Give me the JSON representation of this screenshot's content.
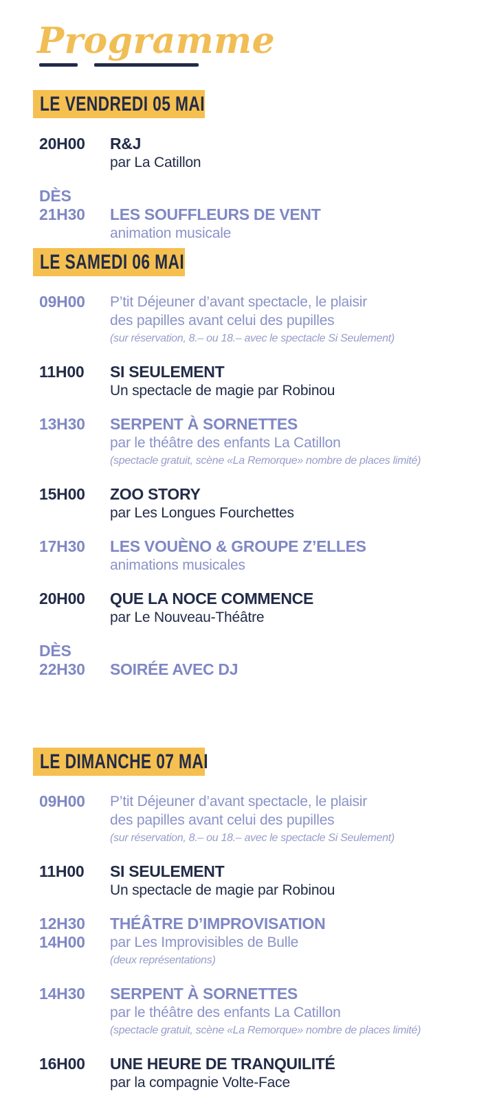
{
  "title": "Programme",
  "palette": {
    "navy": "#222B48",
    "accent": "#7F88C4",
    "accent_soft": "#8A92C8",
    "accent_note": "#979DCB",
    "yellow": "#F5C050",
    "gold": "#F1BD55"
  },
  "sections": [
    {
      "label": "LE VENDREDI 05 MAI",
      "events": [
        {
          "time_lines": [
            "20H00"
          ],
          "align": "first",
          "tone": "dark",
          "lines": [
            {
              "kind": "title",
              "text": "R&J"
            },
            {
              "kind": "sub",
              "text": "par La Catillon"
            }
          ]
        },
        {
          "time_lines": [
            "DÈS",
            "21H30"
          ],
          "align": "second",
          "tone": "accent",
          "lines": [
            {
              "kind": "title",
              "text": "LES SOUFFLEURS DE VENT"
            },
            {
              "kind": "sub",
              "text": "animation musicale"
            }
          ]
        }
      ]
    },
    {
      "label": "LE SAMEDI 06 MAI",
      "events": [
        {
          "time_lines": [
            "09H00"
          ],
          "align": "first",
          "tone": "accent",
          "lines": [
            {
              "kind": "plain",
              "text": "P’tit Déjeuner d’avant spectacle, le plaisir"
            },
            {
              "kind": "plain",
              "text": "des papilles avant celui des pupilles"
            },
            {
              "kind": "note",
              "text": "(sur réservation, 8.– ou 18.– avec le spectacle Si Seulement)"
            }
          ]
        },
        {
          "time_lines": [
            "11H00"
          ],
          "align": "first",
          "tone": "dark",
          "lines": [
            {
              "kind": "title",
              "text": "SI SEULEMENT"
            },
            {
              "kind": "sub",
              "text": "Un spectacle de magie par Robinou"
            }
          ]
        },
        {
          "time_lines": [
            "13H30"
          ],
          "align": "first",
          "tone": "accent",
          "lines": [
            {
              "kind": "title",
              "text": "SERPENT À SORNETTES"
            },
            {
              "kind": "sub",
              "text": "par le théâtre des enfants La Catillon"
            },
            {
              "kind": "note",
              "text": "(spectacle gratuit, scène «La Remorque» nombre de places limité)"
            }
          ]
        },
        {
          "time_lines": [
            "15H00"
          ],
          "align": "first",
          "tone": "dark",
          "lines": [
            {
              "kind": "title",
              "text": "ZOO STORY"
            },
            {
              "kind": "sub",
              "text": "par Les Longues Fourchettes"
            }
          ]
        },
        {
          "time_lines": [
            "17H30"
          ],
          "align": "first",
          "tone": "accent",
          "lines": [
            {
              "kind": "title",
              "text": "LES VOUÈNO & GROUPE Z’ELLES"
            },
            {
              "kind": "sub",
              "text": "animations musicales"
            }
          ]
        },
        {
          "time_lines": [
            "20H00"
          ],
          "align": "first",
          "tone": "dark",
          "lines": [
            {
              "kind": "title",
              "text": "QUE LA NOCE COMMENCE"
            },
            {
              "kind": "sub",
              "text": "par Le Nouveau-Théâtre"
            }
          ]
        },
        {
          "time_lines": [
            "DÈS",
            "22H30"
          ],
          "align": "second",
          "tone": "accent",
          "lines": [
            {
              "kind": "title",
              "text": "SOIRÉE AVEC DJ"
            }
          ]
        }
      ]
    },
    {
      "label": "LE DIMANCHE 07 MAI",
      "events": [
        {
          "time_lines": [
            "09H00"
          ],
          "align": "first",
          "tone": "accent",
          "lines": [
            {
              "kind": "plain",
              "text": "P’tit Déjeuner d’avant spectacle, le plaisir"
            },
            {
              "kind": "plain",
              "text": "des papilles avant celui des pupilles"
            },
            {
              "kind": "note",
              "text": "(sur réservation, 8.– ou 18.– avec le spectacle Si Seulement)"
            }
          ]
        },
        {
          "time_lines": [
            "11H00"
          ],
          "align": "first",
          "tone": "dark",
          "lines": [
            {
              "kind": "title",
              "text": "SI SEULEMENT"
            },
            {
              "kind": "sub",
              "text": "Un spectacle de magie par Robinou"
            }
          ]
        },
        {
          "time_lines": [
            "12H30",
            "14H00"
          ],
          "align": "first",
          "tone": "accent",
          "lines": [
            {
              "kind": "title",
              "text": "THÉÂTRE D’IMPROVISATION"
            },
            {
              "kind": "sub",
              "text": "par Les Improvisibles de Bulle"
            },
            {
              "kind": "note",
              "text": "(deux représentations)"
            }
          ]
        },
        {
          "time_lines": [
            "14H30"
          ],
          "align": "first",
          "tone": "accent",
          "lines": [
            {
              "kind": "title",
              "text": "SERPENT À SORNETTES"
            },
            {
              "kind": "sub",
              "text": "par le théâtre des enfants La Catillon"
            },
            {
              "kind": "note",
              "text": "(spectacle gratuit, scène «La Remorque» nombre de places limité)"
            }
          ]
        },
        {
          "time_lines": [
            "16H00"
          ],
          "align": "first",
          "tone": "dark",
          "lines": [
            {
              "kind": "title",
              "text": "UNE HEURE DE TRANQUILITÉ"
            },
            {
              "kind": "sub",
              "text": "par la compagnie Volte-Face"
            }
          ]
        }
      ]
    }
  ]
}
